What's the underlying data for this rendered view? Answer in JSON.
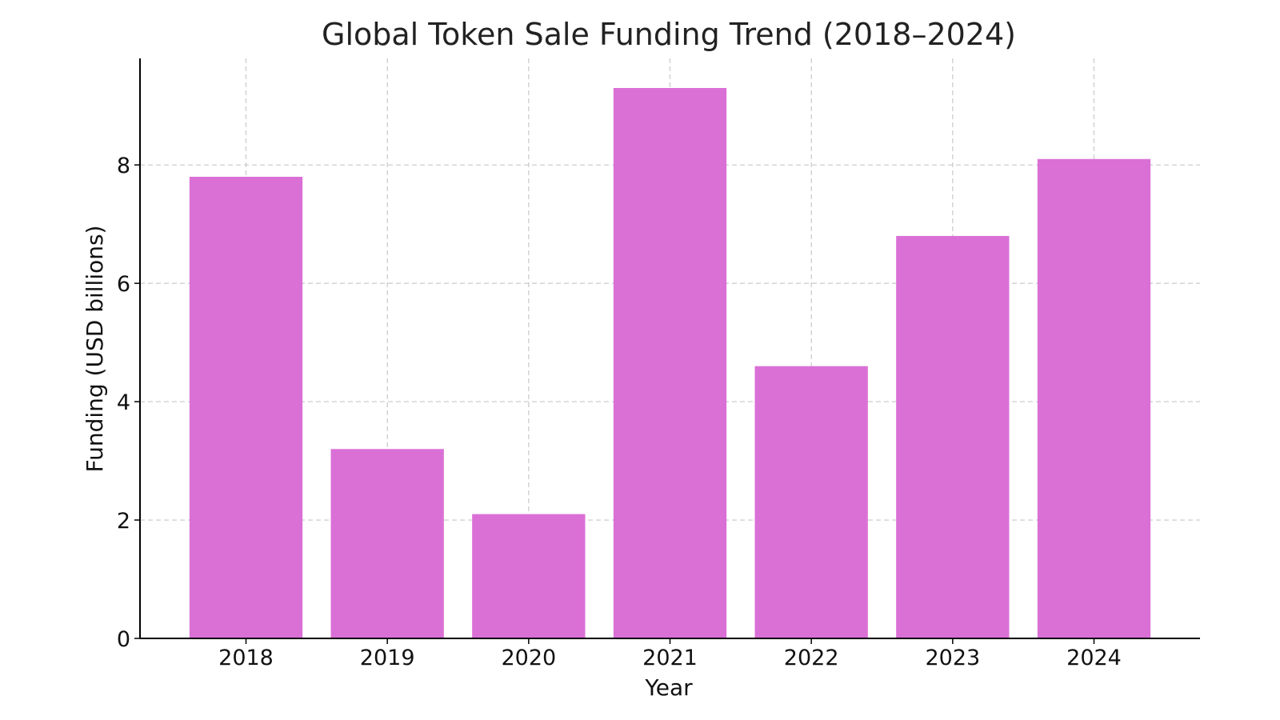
{
  "chart_data": {
    "type": "bar",
    "title": "Global Token Sale Funding Trend (2018–2024)",
    "xlabel": "Year",
    "ylabel": "Funding (USD billions)",
    "categories": [
      "2018",
      "2019",
      "2020",
      "2021",
      "2022",
      "2023",
      "2024"
    ],
    "values": [
      7.8,
      3.2,
      2.1,
      9.3,
      4.6,
      6.8,
      8.1
    ],
    "ylim": [
      0,
      9.8
    ],
    "yticks": [
      0,
      2,
      4,
      6,
      8
    ],
    "grid": true,
    "bar_color": "#da70d6"
  }
}
